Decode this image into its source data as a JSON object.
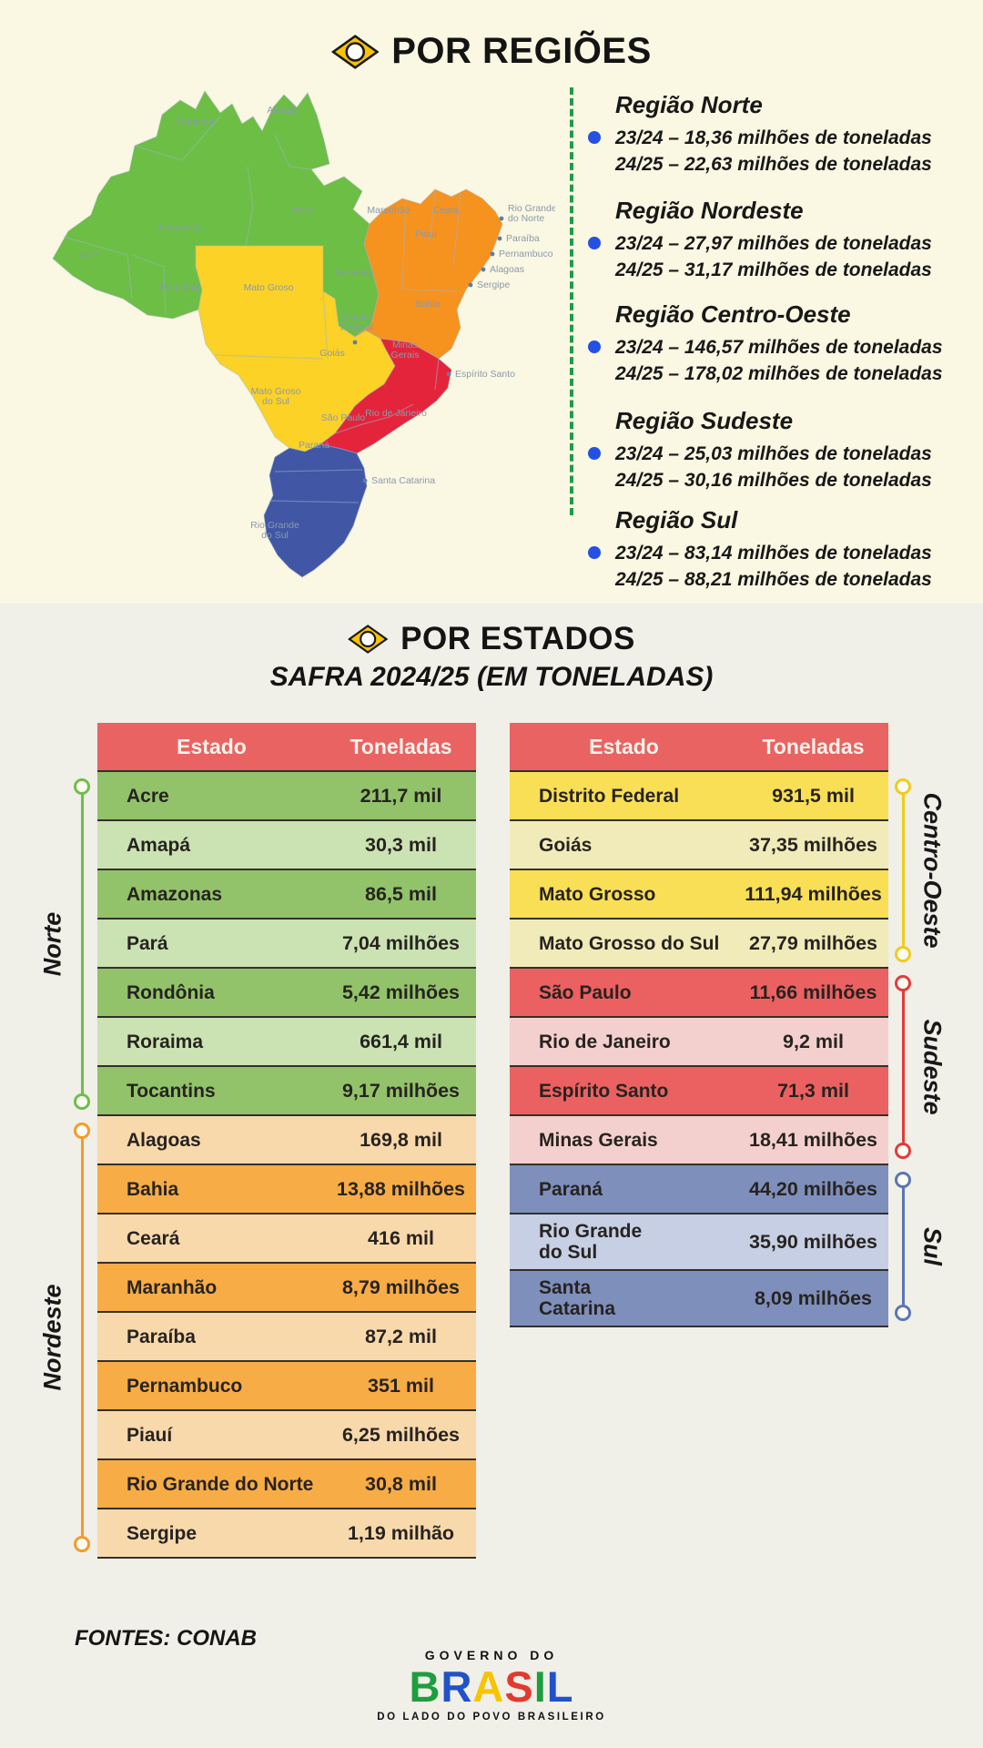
{
  "sections": {
    "regioes_title": "POR REGIÕES",
    "estados_title": "POR ESTADOS",
    "estados_subtitle": "SAFRA 2024/25 (EM TONELADAS)"
  },
  "colors": {
    "bg_top": "#FAF7E2",
    "bg_bottom": "#F0EFE8",
    "dashed_separator": "#1E9C49",
    "bullet_blue": "#2450E4",
    "table_header_bg": "#E96363",
    "diamond_yellow": "#F8C300"
  },
  "map": {
    "region_colors": {
      "norte": "#6CBE45",
      "nordeste": "#F6921E",
      "centro_oeste": "#FBD225",
      "sudeste": "#E4243B",
      "sul": "#4156A5"
    },
    "labels": [
      {
        "id": "roraima",
        "text": "Roraima"
      },
      {
        "id": "amapa",
        "text": "Amapá"
      },
      {
        "id": "amazonas",
        "text": "Amazonas"
      },
      {
        "id": "acre",
        "text": "Acre"
      },
      {
        "id": "para",
        "text": "Pará"
      },
      {
        "id": "rondonia",
        "text": "Rondônia"
      },
      {
        "id": "tocantins",
        "text": "Tocantins"
      },
      {
        "id": "maranhao",
        "text": "Maranhão"
      },
      {
        "id": "ceara",
        "text": "Ceará"
      },
      {
        "id": "piaui",
        "text": "Piauí"
      },
      {
        "id": "rio-grande-do-norte",
        "text": "Rio Grande\ndo Norte"
      },
      {
        "id": "paraiba",
        "text": "Paraíba"
      },
      {
        "id": "pernambuco",
        "text": "Pernambuco"
      },
      {
        "id": "alagoas",
        "text": "Alagoas"
      },
      {
        "id": "sergipe",
        "text": "Sergipe"
      },
      {
        "id": "bahia",
        "text": "Bahia"
      },
      {
        "id": "mato-grosso",
        "text": "Mato Groso"
      },
      {
        "id": "distrito-federal",
        "text": "Distrito\nFederal"
      },
      {
        "id": "goias",
        "text": "Goiás"
      },
      {
        "id": "mato-grosso-do-sul",
        "text": "Mato Groso\ndo Sul"
      },
      {
        "id": "minas-gerais",
        "text": "Minas\nGerais"
      },
      {
        "id": "espirito-santo",
        "text": "Espírito Santo"
      },
      {
        "id": "sao-paulo",
        "text": "São Paulo"
      },
      {
        "id": "rio-de-janeiro",
        "text": "Rio de Janeiro"
      },
      {
        "id": "parana",
        "text": "Paraná"
      },
      {
        "id": "santa-catarina",
        "text": "Santa Catarina"
      },
      {
        "id": "rio-grande-do-sul",
        "text": "Rio Grande\ndo Sul"
      }
    ]
  },
  "regions_list": [
    {
      "name": "Região Norte",
      "line1": "23/24 – 18,36 milhões de toneladas",
      "line2": "24/25 – 22,63 milhões de toneladas"
    },
    {
      "name": "Região Nordeste",
      "line1": "23/24 – 27,97 milhões de toneladas",
      "line2": "24/25 – 31,17 milhões de toneladas"
    },
    {
      "name": "Região Centro-Oeste",
      "line1": "23/24 – 146,57 milhões de toneladas",
      "line2": "24/25 – 178,02 milhões de toneladas"
    },
    {
      "name": "Região Sudeste",
      "line1": "23/24 – 25,03 milhões de toneladas",
      "line2": "24/25 – 30,16 milhões de toneladas"
    },
    {
      "name": "Região Sul",
      "line1": "23/24 – 83,14 milhões de toneladas",
      "line2": "24/25 – 88,21 milhões de toneladas"
    }
  ],
  "tables": {
    "header": {
      "estado": "Estado",
      "toneladas": "Toneladas",
      "bg": "#E96363"
    },
    "left_groups": [
      {
        "region": "Norte",
        "line_color": "#6FBE4A",
        "dark": "#92C36A",
        "light": "#CBE2B2",
        "start": "dark",
        "rows": [
          [
            "Acre",
            "211,7 mil"
          ],
          [
            "Amapá",
            "30,3 mil"
          ],
          [
            "Amazonas",
            "86,5 mil"
          ],
          [
            "Pará",
            "7,04 milhões"
          ],
          [
            "Rondônia",
            "5,42 milhões"
          ],
          [
            "Roraima",
            "661,4 mil"
          ],
          [
            "Tocantins",
            "9,17 milhões"
          ]
        ]
      },
      {
        "region": "Nordeste",
        "line_color": "#F49B28",
        "dark": "#F7AC46",
        "light": "#F8D9AB",
        "start": "light",
        "rows": [
          [
            "Alagoas",
            "169,8 mil"
          ],
          [
            "Bahia",
            "13,88 milhões"
          ],
          [
            "Ceará",
            "416 mil"
          ],
          [
            "Maranhão",
            "8,79 milhões"
          ],
          [
            "Paraíba",
            "87,2 mil"
          ],
          [
            "Pernambuco",
            "351 mil"
          ],
          [
            "Piauí",
            "6,25 milhões"
          ],
          [
            "Rio Grande do Norte",
            "30,8 mil"
          ],
          [
            "Sergipe",
            "1,19 milhão"
          ]
        ]
      }
    ],
    "right_groups": [
      {
        "region": "Centro-Oeste",
        "line_color": "#F2CB1D",
        "dark": "#F9DF56",
        "light": "#F1EBB9",
        "start": "dark",
        "rows": [
          [
            "Distrito Federal",
            "931,5 mil"
          ],
          [
            "Goiás",
            "37,35 milhões"
          ],
          [
            "Mato Grosso",
            "111,94 milhões"
          ],
          [
            "Mato Grosso do Sul",
            "27,79 milhões"
          ]
        ]
      },
      {
        "region": "Sudeste",
        "line_color": "#E23B3B",
        "dark": "#EB6161",
        "light": "#F3D0CE",
        "start": "dark",
        "rows": [
          [
            "São Paulo",
            "11,66 milhões"
          ],
          [
            "Rio de Janeiro",
            "9,2 mil"
          ],
          [
            "Espírito Santo",
            "71,3 mil"
          ],
          [
            "Minas Gerais",
            "18,41 milhões"
          ]
        ]
      },
      {
        "region": "Sul",
        "line_color": "#5B76B5",
        "dark": "#7E8FBC",
        "light": "#C6CFE3",
        "start": "dark",
        "rows": [
          [
            "Paraná",
            "44,20 milhões"
          ],
          [
            "Rio Grande\ndo Sul",
            "35,90 milhões"
          ],
          [
            "Santa\nCatarina",
            "8,09 milhões"
          ]
        ]
      }
    ]
  },
  "footer": {
    "fontes": "FONTES: CONAB",
    "gov_line": "GOVERNO DO",
    "brasil": "BRASIL",
    "brasil_colors": [
      "#1E9E3E",
      "#2152C9",
      "#F6C400",
      "#E33A2E",
      "#1E9E3E",
      "#2152C9"
    ],
    "tagline": "DO LADO DO POVO BRASILEIRO"
  },
  "chart_data": [
    {
      "type": "table",
      "title": "POR REGIÕES — produção (milhões de toneladas)",
      "columns": [
        "Região",
        "23/24",
        "24/25"
      ],
      "rows": [
        [
          "Norte",
          18.36,
          22.63
        ],
        [
          "Nordeste",
          27.97,
          31.17
        ],
        [
          "Centro-Oeste",
          146.57,
          178.02
        ],
        [
          "Sudeste",
          25.03,
          30.16
        ],
        [
          "Sul",
          83.14,
          88.21
        ]
      ]
    },
    {
      "type": "table",
      "title": "POR ESTADOS — SAFRA 2024/25 (EM TONELADAS)",
      "columns": [
        "Estado",
        "Toneladas",
        "Região"
      ],
      "rows": [
        [
          "Acre",
          "211,7 mil",
          "Norte"
        ],
        [
          "Amapá",
          "30,3 mil",
          "Norte"
        ],
        [
          "Amazonas",
          "86,5 mil",
          "Norte"
        ],
        [
          "Pará",
          "7,04 milhões",
          "Norte"
        ],
        [
          "Rondônia",
          "5,42 milhões",
          "Norte"
        ],
        [
          "Roraima",
          "661,4 mil",
          "Norte"
        ],
        [
          "Tocantins",
          "9,17 milhões",
          "Norte"
        ],
        [
          "Alagoas",
          "169,8 mil",
          "Nordeste"
        ],
        [
          "Bahia",
          "13,88 milhões",
          "Nordeste"
        ],
        [
          "Ceará",
          "416 mil",
          "Nordeste"
        ],
        [
          "Maranhão",
          "8,79 milhões",
          "Nordeste"
        ],
        [
          "Paraíba",
          "87,2 mil",
          "Nordeste"
        ],
        [
          "Pernambuco",
          "351 mil",
          "Nordeste"
        ],
        [
          "Piauí",
          "6,25 milhões",
          "Nordeste"
        ],
        [
          "Rio Grande do Norte",
          "30,8 mil",
          "Nordeste"
        ],
        [
          "Sergipe",
          "1,19 milhão",
          "Nordeste"
        ],
        [
          "Distrito Federal",
          "931,5 mil",
          "Centro-Oeste"
        ],
        [
          "Goiás",
          "37,35 milhões",
          "Centro-Oeste"
        ],
        [
          "Mato Grosso",
          "111,94 milhões",
          "Centro-Oeste"
        ],
        [
          "Mato Grosso do Sul",
          "27,79 milhões",
          "Centro-Oeste"
        ],
        [
          "São Paulo",
          "11,66 milhões",
          "Sudeste"
        ],
        [
          "Rio de Janeiro",
          "9,2 mil",
          "Sudeste"
        ],
        [
          "Espírito Santo",
          "71,3 mil",
          "Sudeste"
        ],
        [
          "Minas Gerais",
          "18,41 milhões",
          "Sudeste"
        ],
        [
          "Paraná",
          "44,20 milhões",
          "Sul"
        ],
        [
          "Rio Grande do Sul",
          "35,90 milhões",
          "Sul"
        ],
        [
          "Santa Catarina",
          "8,09 milhões",
          "Sul"
        ]
      ]
    }
  ]
}
